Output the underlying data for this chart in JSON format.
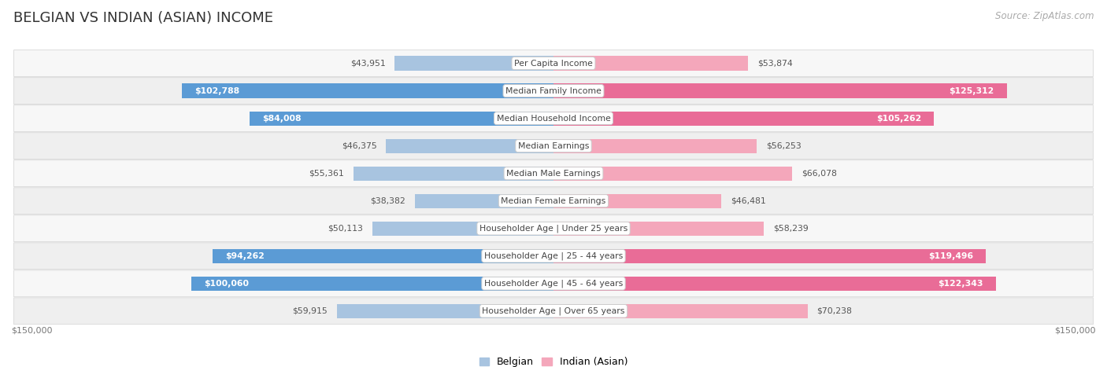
{
  "title": "BELGIAN VS INDIAN (ASIAN) INCOME",
  "source": "Source: ZipAtlas.com",
  "categories": [
    "Per Capita Income",
    "Median Family Income",
    "Median Household Income",
    "Median Earnings",
    "Median Male Earnings",
    "Median Female Earnings",
    "Householder Age | Under 25 years",
    "Householder Age | 25 - 44 years",
    "Householder Age | 45 - 64 years",
    "Householder Age | Over 65 years"
  ],
  "belgian_values": [
    43951,
    102788,
    84008,
    46375,
    55361,
    38382,
    50113,
    94262,
    100060,
    59915
  ],
  "indian_values": [
    53874,
    125312,
    105262,
    56253,
    66078,
    46481,
    58239,
    119496,
    122343,
    70238
  ],
  "belgian_labels": [
    "$43,951",
    "$102,788",
    "$84,008",
    "$46,375",
    "$55,361",
    "$38,382",
    "$50,113",
    "$94,262",
    "$100,060",
    "$59,915"
  ],
  "indian_labels": [
    "$53,874",
    "$125,312",
    "$105,262",
    "$56,253",
    "$66,078",
    "$46,481",
    "$58,239",
    "$119,496",
    "$122,343",
    "$70,238"
  ],
  "belgian_color_light": "#a8c4e0",
  "belgian_color_dark": "#5b9bd5",
  "indian_color_light": "#f4a7bb",
  "indian_color_dark": "#e96c97",
  "max_value": 150000,
  "row_bg_light": "#f7f7f7",
  "row_bg_dark": "#efefef",
  "row_border": "#d8d8d8",
  "label_axis": "$150,000",
  "legend_belgian": "Belgian",
  "legend_indian": "Indian (Asian)",
  "title_fontsize": 13,
  "source_fontsize": 8.5,
  "label_fontsize": 7.8,
  "cat_fontsize": 7.8,
  "dark_threshold_belgian": 70000,
  "dark_threshold_indian": 90000
}
